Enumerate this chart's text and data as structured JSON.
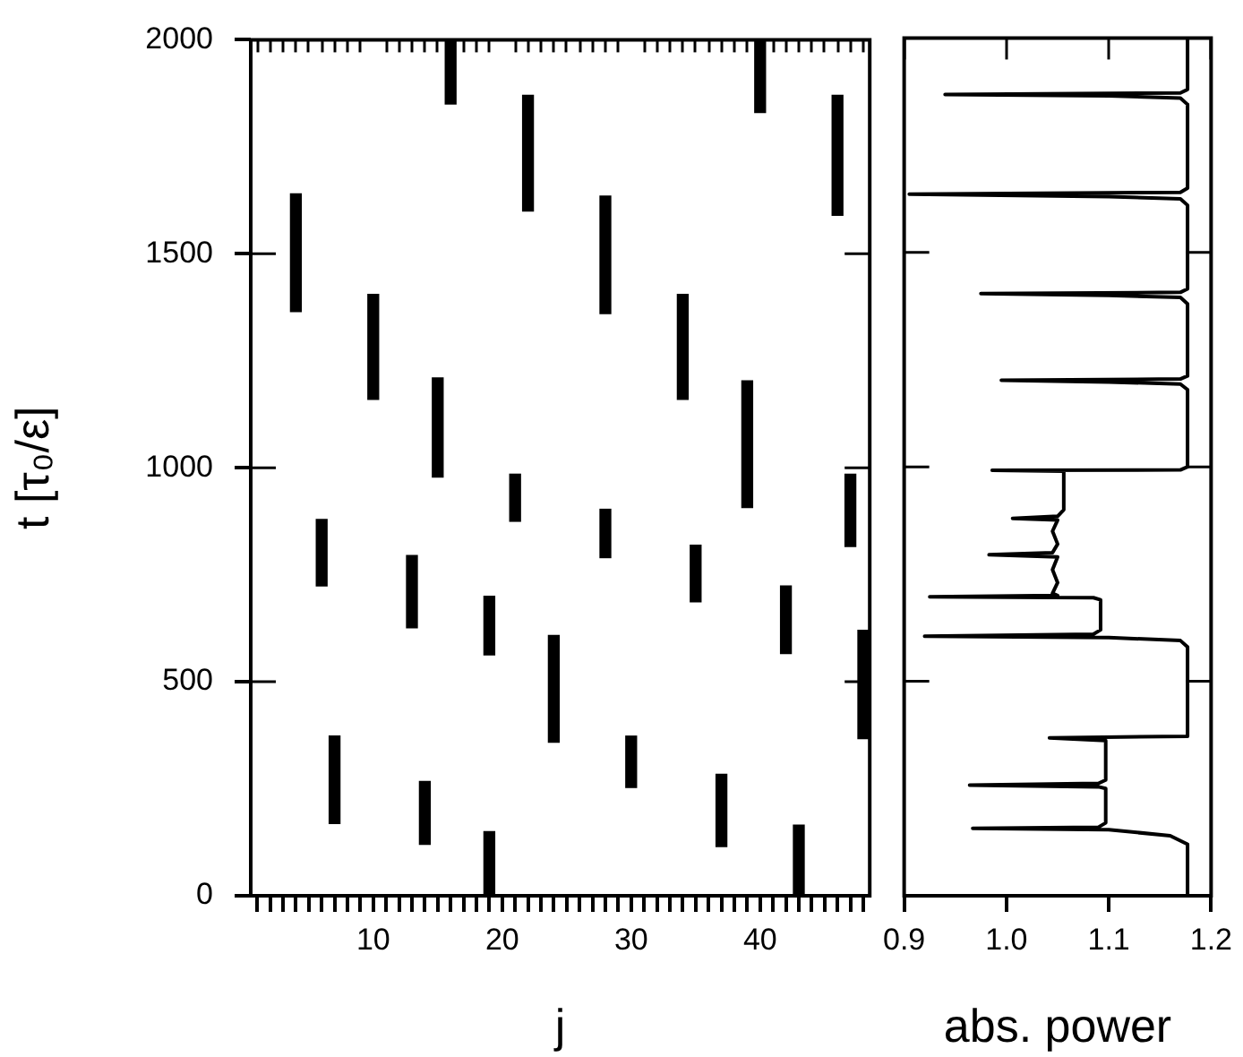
{
  "chart_data": [
    {
      "type": "bar",
      "xlabel": "j",
      "ylabel": "t [τ₀/ε]",
      "series": [
        {
          "color": "#000000",
          "x": [
            4,
            6,
            7,
            10,
            13,
            14,
            15,
            16,
            19,
            21,
            22,
            24,
            28,
            30,
            34,
            35,
            37,
            39,
            40,
            42,
            43,
            46,
            47,
            48
          ],
          "base": [
            1365,
            724,
            169,
            1160,
            626,
            120,
            978,
            1850,
            0,
            875,
            1600,
            359,
            790,
            253,
            1160,
            687,
            115,
            907,
            1830,
            566,
            0,
            1590,
            816,
            367
          ],
          "values": [
            275,
            155,
            204,
            245,
            169,
            147,
            232,
            150,
            150,
            110,
            270,
            249,
            113,
            120,
            245,
            132,
            169,
            296,
            170,
            158,
            165,
            280,
            169,
            253
          ]
        },
        {
          "color": "#000000",
          "x": [
            19,
            28
          ],
          "base": [
            563,
            1360
          ],
          "values": [
            137,
            275
          ]
        }
      ],
      "xlim": [
        0.5,
        48.5
      ],
      "ylim": [
        0,
        2000
      ],
      "xticks": [
        {
          "value": 1,
          "label": null
        },
        {
          "value": 2,
          "label": null
        },
        {
          "value": 3,
          "label": null
        },
        {
          "value": 4,
          "label": null
        },
        {
          "value": 5,
          "label": null
        },
        {
          "value": 6,
          "label": null
        },
        {
          "value": 7,
          "label": null
        },
        {
          "value": 8,
          "label": null
        },
        {
          "value": 9,
          "label": null
        },
        10,
        {
          "value": 11,
          "label": null
        },
        {
          "value": 12,
          "label": null
        },
        {
          "value": 13,
          "label": null
        },
        {
          "value": 14,
          "label": null
        },
        {
          "value": 15,
          "label": null
        },
        {
          "value": 16,
          "label": null
        },
        {
          "value": 17,
          "label": null
        },
        {
          "value": 18,
          "label": null
        },
        {
          "value": 19,
          "label": null
        },
        20,
        {
          "value": 21,
          "label": null
        },
        {
          "value": 22,
          "label": null
        },
        {
          "value": 23,
          "label": null
        },
        {
          "value": 24,
          "label": null
        },
        {
          "value": 25,
          "label": null
        },
        {
          "value": 26,
          "label": null
        },
        {
          "value": 27,
          "label": null
        },
        {
          "value": 28,
          "label": null
        },
        {
          "value": 29,
          "label": null
        },
        30,
        {
          "value": 31,
          "label": null
        },
        {
          "value": 32,
          "label": null
        },
        {
          "value": 33,
          "label": null
        },
        {
          "value": 34,
          "label": null
        },
        {
          "value": 35,
          "label": null
        },
        {
          "value": 36,
          "label": null
        },
        {
          "value": 37,
          "label": null
        },
        {
          "value": 38,
          "label": null
        },
        {
          "value": 39,
          "label": null
        },
        40,
        {
          "value": 41,
          "label": null
        },
        {
          "value": 42,
          "label": null
        },
        {
          "value": 43,
          "label": null
        },
        {
          "value": 44,
          "label": null
        },
        {
          "value": 45,
          "label": null
        },
        {
          "value": 46,
          "label": null
        },
        {
          "value": 47,
          "label": null
        },
        {
          "value": 48,
          "label": null
        }
      ],
      "yticks": [
        0,
        500,
        1000,
        1500,
        2000
      ],
      "grid": false,
      "legend": false
    },
    {
      "type": "line",
      "xlabel": "abs. power",
      "color": "#000000",
      "marker": "none",
      "line_style": "solid",
      "x": [
        1.177,
        1.177,
        1.17,
        0.94,
        1.1,
        1.17,
        1.177,
        1.177,
        1.17,
        0.905,
        1.1,
        1.17,
        1.177,
        1.177,
        1.17,
        0.975,
        1.1,
        1.17,
        1.177,
        1.177,
        1.17,
        0.995,
        1.1,
        1.17,
        1.177,
        1.177,
        1.17,
        0.986,
        1.056,
        1.056,
        1.05,
        1.006,
        1.05,
        1.045,
        1.05,
        1.045,
        0.983,
        1.05,
        1.045,
        1.05,
        1.045,
        1.05,
        0.925,
        1.085,
        1.092,
        1.092,
        1.085,
        0.92,
        1.1,
        1.17,
        1.177,
        1.177,
        1.042,
        1.097,
        1.097,
        1.09,
        0.964,
        1.09,
        1.097,
        1.097,
        1.09,
        0.967,
        1.1,
        1.16,
        1.177,
        1.177
      ],
      "values": [
        2000,
        1880,
        1872,
        1868,
        1865,
        1860,
        1845,
        1650,
        1640,
        1636,
        1630,
        1625,
        1610,
        1415,
        1407,
        1404,
        1400,
        1395,
        1380,
        1212,
        1205,
        1202,
        1198,
        1193,
        1180,
        1000,
        993,
        992,
        990,
        900,
        885,
        880,
        876,
        850,
        820,
        800,
        795,
        790,
        760,
        730,
        705,
        700,
        697,
        695,
        690,
        620,
        610,
        605,
        602,
        595,
        580,
        372,
        368,
        362,
        270,
        262,
        258,
        254,
        250,
        170,
        160,
        157,
        154,
        140,
        120,
        0
      ],
      "xlim": [
        0.9,
        1.2
      ],
      "xticks": [
        0.9,
        {
          "value": 1,
          "label": "1.0"
        },
        1.1,
        1.2
      ],
      "ylim": [
        0,
        2000
      ],
      "yticks": [
        {
          "value": 0,
          "label": null
        },
        {
          "value": 500,
          "label": null
        },
        {
          "value": 1000,
          "label": null
        },
        {
          "value": 1500,
          "label": null
        },
        {
          "value": 2000,
          "label": null
        }
      ],
      "tick_labels": "x",
      "grid": false,
      "legend": false
    }
  ]
}
